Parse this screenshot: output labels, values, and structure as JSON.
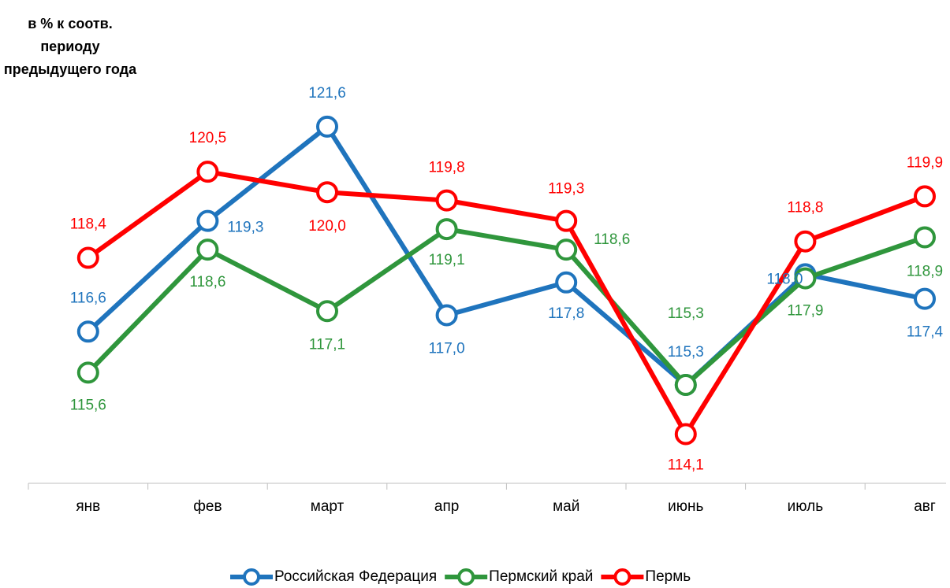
{
  "chart_data": {
    "type": "line",
    "title": "в % к соотв. периоду предыдущего года",
    "categories": [
      "янв",
      "фев",
      "март",
      "апр",
      "май",
      "июнь",
      "июль",
      "авг"
    ],
    "ylim": [
      112.9,
      122.5
    ],
    "legend": "bottom",
    "series": [
      {
        "name": "Российская Федерация",
        "color": "#1f74bd",
        "values": [
          116.6,
          119.3,
          121.6,
          117.0,
          117.8,
          115.3,
          118.0,
          117.4
        ],
        "value_labels": [
          "116,6",
          "119,3",
          "121,6",
          "117,0",
          "117,8",
          "115,3",
          "118,0",
          "117,4"
        ]
      },
      {
        "name": "Пермский край",
        "color": "#2f963c",
        "values": [
          115.6,
          118.6,
          117.1,
          119.1,
          118.6,
          115.3,
          117.9,
          118.9
        ],
        "value_labels": [
          "115,6",
          "118,6",
          "117,1",
          "119,1",
          "118,6",
          "115,3",
          "117,9",
          "118,9"
        ]
      },
      {
        "name": "Пермь",
        "color": "#ff0000",
        "values": [
          118.4,
          120.5,
          120.0,
          119.8,
          119.3,
          114.1,
          118.8,
          119.9
        ],
        "value_labels": [
          "118,4",
          "120,5",
          "120,0",
          "119,8",
          "119,3",
          "114,1",
          "118,8",
          "119,9"
        ]
      }
    ]
  }
}
